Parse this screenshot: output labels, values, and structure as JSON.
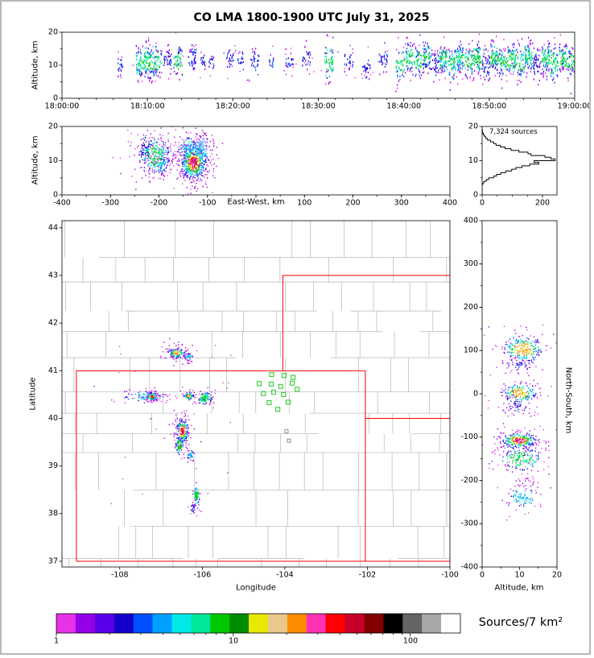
{
  "title": "CO LMA 1800-1900 UTC July 31, 2025",
  "colorbar": {
    "label": "Sources/7 km²",
    "tick_labels": [
      "1",
      "10",
      "100"
    ],
    "tick_values": [
      1,
      10,
      100
    ],
    "minor_tick_values": [
      2,
      3,
      4,
      5,
      6,
      7,
      8,
      9,
      20,
      30,
      40,
      50,
      60,
      70,
      80,
      90
    ],
    "value_range": [
      1,
      192
    ],
    "colors": [
      "#e832e8",
      "#9400e8",
      "#5a00e8",
      "#1400c8",
      "#0050ff",
      "#00a0ff",
      "#00e8e8",
      "#00e89b",
      "#00c800",
      "#008c00",
      "#e8e800",
      "#e8c88c",
      "#ff8c00",
      "#ff32b4",
      "#ff0000",
      "#c80028",
      "#820000",
      "#000000",
      "#646464",
      "#a8a8a8",
      "#ffffff"
    ]
  },
  "chart_data": [
    {
      "id": "time_height_series",
      "type": "scatter",
      "ylabel": "Altitude, km",
      "x_ticks": [
        0,
        600,
        1200,
        1800,
        2400,
        3000,
        3600
      ],
      "x_tick_labels": [
        "18:00:00",
        "18:10:00",
        "18:20:00",
        "18:30:00",
        "18:40:00",
        "18:50:00",
        "19:00:00"
      ],
      "ylim": [
        0,
        20
      ],
      "y_ticks": [
        0,
        10,
        20
      ],
      "strips": [
        [
          390,
          430,
          7,
          13,
          20,
          0
        ],
        [
          520,
          575,
          6,
          16,
          60,
          1
        ],
        [
          575,
          640,
          5,
          17,
          85,
          1
        ],
        [
          640,
          700,
          6,
          16,
          55,
          1
        ],
        [
          715,
          770,
          8,
          15,
          35,
          0
        ],
        [
          785,
          845,
          7,
          16,
          50,
          1
        ],
        [
          885,
          945,
          8,
          16,
          40,
          0
        ],
        [
          965,
          1005,
          9,
          14,
          18,
          0
        ],
        [
          1030,
          1070,
          8,
          13,
          14,
          0
        ],
        [
          1155,
          1205,
          9,
          15,
          25,
          0
        ],
        [
          1235,
          1275,
          8,
          14,
          16,
          0
        ],
        [
          1325,
          1385,
          8,
          15,
          30,
          0
        ],
        [
          1445,
          1485,
          9,
          13,
          12,
          0
        ],
        [
          1565,
          1625,
          8,
          14,
          22,
          0
        ],
        [
          1685,
          1745,
          9,
          15,
          26,
          0
        ],
        [
          1845,
          1905,
          5,
          17,
          55,
          1
        ],
        [
          1985,
          2045,
          8,
          14,
          22,
          0
        ],
        [
          2105,
          2165,
          6,
          12,
          26,
          0
        ],
        [
          2225,
          2285,
          8,
          15,
          30,
          0
        ],
        [
          2345,
          2405,
          5,
          16,
          45,
          1
        ],
        [
          2410,
          2465,
          7,
          17,
          55,
          1
        ],
        [
          2470,
          2525,
          6,
          16,
          48,
          1
        ],
        [
          2530,
          2585,
          8,
          17,
          65,
          1
        ],
        [
          2590,
          2645,
          6,
          15,
          40,
          0
        ],
        [
          2650,
          2705,
          7,
          17,
          75,
          1
        ],
        [
          2710,
          2765,
          5,
          16,
          55,
          1
        ],
        [
          2770,
          2825,
          8,
          17,
          65,
          1
        ],
        [
          2830,
          2885,
          6,
          16,
          50,
          1
        ],
        [
          2890,
          2945,
          7,
          17,
          70,
          1
        ],
        [
          2950,
          3005,
          5,
          15,
          45,
          0
        ],
        [
          3010,
          3065,
          8,
          17,
          80,
          1
        ],
        [
          3070,
          3125,
          6,
          16,
          55,
          1
        ],
        [
          3130,
          3185,
          7,
          17,
          65,
          1
        ],
        [
          3190,
          3245,
          5,
          16,
          50,
          1
        ],
        [
          3250,
          3305,
          8,
          17,
          75,
          1
        ],
        [
          3310,
          3365,
          6,
          15,
          45,
          0
        ],
        [
          3370,
          3425,
          7,
          17,
          70,
          1
        ],
        [
          3430,
          3485,
          5,
          16,
          55,
          1
        ],
        [
          3490,
          3545,
          8,
          17,
          65,
          1
        ],
        [
          3550,
          3600,
          6,
          16,
          50,
          1
        ]
      ],
      "sparse": {
        "n": 90,
        "x_range": [
          350,
          3600
        ],
        "y_range": [
          5,
          16
        ]
      }
    },
    {
      "id": "east_west_cross_section",
      "type": "scatter",
      "xlabel": "East-West, km",
      "ylabel": "Altitude, km",
      "xlim": [
        -400,
        400
      ],
      "x_ticks": [
        -400,
        -300,
        -200,
        -100,
        0,
        100,
        200,
        300,
        400
      ],
      "x_tick_labels": [
        "-400",
        "-300",
        "-200",
        "-100",
        "",
        "100",
        "200",
        "300",
        "400"
      ],
      "ylim": [
        0,
        20
      ],
      "y_ticks": [
        0,
        10,
        20
      ],
      "clusters": [
        {
          "x": -207,
          "y": 11.5,
          "sx": 16,
          "sy": 2.4,
          "n": 320,
          "hot": 0.6
        },
        {
          "x": -228,
          "y": 13.5,
          "sx": 7,
          "sy": 1.6,
          "n": 60,
          "hot": 0.2
        },
        {
          "x": -196,
          "y": 8.5,
          "sx": 6,
          "sy": 1.2,
          "n": 50,
          "hot": 0.3
        },
        {
          "x": -128,
          "y": 9.5,
          "sx": 13,
          "sy": 2.6,
          "n": 650,
          "hot": 1.0
        },
        {
          "x": -140,
          "y": 13.5,
          "sx": 9,
          "sy": 1.8,
          "n": 90,
          "hot": 0.25
        },
        {
          "x": -113,
          "y": 13,
          "sx": 9,
          "sy": 2.2,
          "n": 110,
          "hot": 0.3
        }
      ],
      "sparse": {
        "n": 45,
        "x_range": [
          -265,
          -85
        ],
        "y_range": [
          5,
          18
        ]
      }
    },
    {
      "id": "altitude_histogram",
      "type": "line",
      "annotation": "7,324 sources",
      "xlim": [
        0,
        248
      ],
      "x_ticks": [
        0,
        200
      ],
      "ylim": [
        0,
        20
      ],
      "y_ticks": [
        0,
        10,
        20
      ],
      "alt_bin_km": 0.5,
      "counts": [
        0,
        0,
        0,
        0,
        0,
        0,
        2,
        6,
        14,
        22,
        38,
        48,
        62,
        78,
        98,
        112,
        132,
        158,
        188,
        172,
        242,
        228,
        208,
        162,
        152,
        122,
        96,
        76,
        60,
        46,
        38,
        28,
        18,
        12,
        8,
        4,
        2,
        1,
        0,
        0,
        0
      ]
    },
    {
      "id": "plan_view_map",
      "type": "scatter",
      "xlabel": "Longitude",
      "ylabel": "Latitude",
      "xlim": [
        -109.4,
        -100.0
      ],
      "x_ticks": [
        -108,
        -106,
        -104,
        -102,
        -100
      ],
      "ylim": [
        36.88,
        44.15
      ],
      "y_ticks": [
        37,
        38,
        39,
        40,
        41,
        42,
        43,
        44
      ],
      "state_border_color": "#ff0000",
      "county_line_color": "#b5b5b5",
      "state_borders": [
        [
          [
            -109.05,
            37
          ],
          [
            -109.05,
            41
          ],
          [
            -102.05,
            41
          ],
          [
            -102.05,
            37
          ],
          [
            -109.05,
            37
          ]
        ],
        [
          [
            -102.05,
            37
          ],
          [
            -99.9,
            37
          ]
        ],
        [
          [
            -104.05,
            41
          ],
          [
            -104.05,
            43
          ],
          [
            -99.9,
            43
          ]
        ],
        [
          [
            -102.05,
            40
          ],
          [
            -99.9,
            40
          ]
        ]
      ],
      "stations": {
        "marker": "open-square",
        "color": "#33cc33",
        "points": [
          [
            -104.32,
            40.92
          ],
          [
            -104.02,
            40.9
          ],
          [
            -103.8,
            40.86
          ],
          [
            -104.62,
            40.73
          ],
          [
            -104.33,
            40.72
          ],
          [
            -104.1,
            40.67
          ],
          [
            -103.82,
            40.74
          ],
          [
            -104.52,
            40.52
          ],
          [
            -104.27,
            40.55
          ],
          [
            -104.03,
            40.5
          ],
          [
            -103.7,
            40.61
          ],
          [
            -104.38,
            40.33
          ],
          [
            -104.17,
            40.19
          ],
          [
            -103.92,
            40.34
          ]
        ]
      },
      "inactive_stations": {
        "marker": "open-square",
        "color": "#999999",
        "points": [
          [
            -103.96,
            39.73
          ],
          [
            -103.9,
            39.53
          ]
        ]
      },
      "clusters": [
        {
          "x": -106.62,
          "y": 41.37,
          "sx": 0.1,
          "sy": 0.05,
          "n": 150,
          "hot": 0.9
        },
        {
          "x": -106.33,
          "y": 41.28,
          "sx": 0.05,
          "sy": 0.035,
          "n": 45,
          "hot": 0.4
        },
        {
          "x": -107.38,
          "y": 40.45,
          "sx": 0.25,
          "sy": 0.05,
          "n": 70,
          "hot": 0.25
        },
        {
          "x": -107.22,
          "y": 40.46,
          "sx": 0.07,
          "sy": 0.04,
          "n": 130,
          "hot": 0.95
        },
        {
          "x": -106.33,
          "y": 40.47,
          "sx": 0.06,
          "sy": 0.04,
          "n": 85,
          "hot": 0.75
        },
        {
          "x": -105.93,
          "y": 40.42,
          "sx": 0.09,
          "sy": 0.06,
          "n": 105,
          "hot": 0.65
        },
        {
          "x": -106.48,
          "y": 39.73,
          "sx": 0.07,
          "sy": 0.13,
          "n": 240,
          "hot": 1.0
        },
        {
          "x": -106.55,
          "y": 39.43,
          "sx": 0.05,
          "sy": 0.09,
          "n": 85,
          "hot": 0.55
        },
        {
          "x": -106.28,
          "y": 39.22,
          "sx": 0.04,
          "sy": 0.05,
          "n": 35,
          "hot": 0.25
        },
        {
          "x": -106.14,
          "y": 38.38,
          "sx": 0.04,
          "sy": 0.11,
          "n": 70,
          "hot": 0.5
        },
        {
          "x": -106.2,
          "y": 38.12,
          "sx": 0.04,
          "sy": 0.05,
          "n": 28,
          "hot": 0.2
        }
      ],
      "sparse": {
        "n": 30,
        "x_range": [
          -108.3,
          -105.2
        ],
        "y_range": [
          38.2,
          41.6
        ]
      }
    },
    {
      "id": "north_south_cross_section",
      "type": "scatter",
      "xlabel": "Altitude, km",
      "ylabel": "North-South, km",
      "xlim": [
        0,
        20
      ],
      "x_ticks": [
        0,
        10,
        20
      ],
      "ylim": [
        -400,
        400
      ],
      "y_ticks": [
        -400,
        -300,
        -200,
        -100,
        0,
        100,
        200,
        300,
        400
      ],
      "clusters": [
        {
          "x": 11,
          "y": 103,
          "sx": 2.6,
          "sy": 15,
          "n": 280,
          "hot": 0.8
        },
        {
          "x": 10,
          "y": 68,
          "sx": 1.4,
          "sy": 7,
          "n": 35,
          "hot": 0.15
        },
        {
          "x": 10,
          "y": 2,
          "sx": 2.4,
          "sy": 11,
          "n": 200,
          "hot": 0.85
        },
        {
          "x": 9.5,
          "y": -30,
          "sx": 1.4,
          "sy": 7,
          "n": 40,
          "hot": 0.15
        },
        {
          "x": 9.8,
          "y": -108,
          "sx": 2.4,
          "sy": 9,
          "n": 300,
          "hot": 1.0
        },
        {
          "x": 10.5,
          "y": -150,
          "sx": 2.6,
          "sy": 13,
          "n": 180,
          "hot": 0.55
        },
        {
          "x": 11,
          "y": -240,
          "sx": 2.0,
          "sy": 11,
          "n": 85,
          "hot": 0.3
        },
        {
          "x": 12,
          "y": -205,
          "sx": 1.4,
          "sy": 6,
          "n": 22,
          "hot": 0.1
        }
      ],
      "sparse": {
        "n": 40,
        "x_range": [
          4,
          16
        ],
        "y_range": [
          -265,
          135
        ]
      }
    }
  ]
}
